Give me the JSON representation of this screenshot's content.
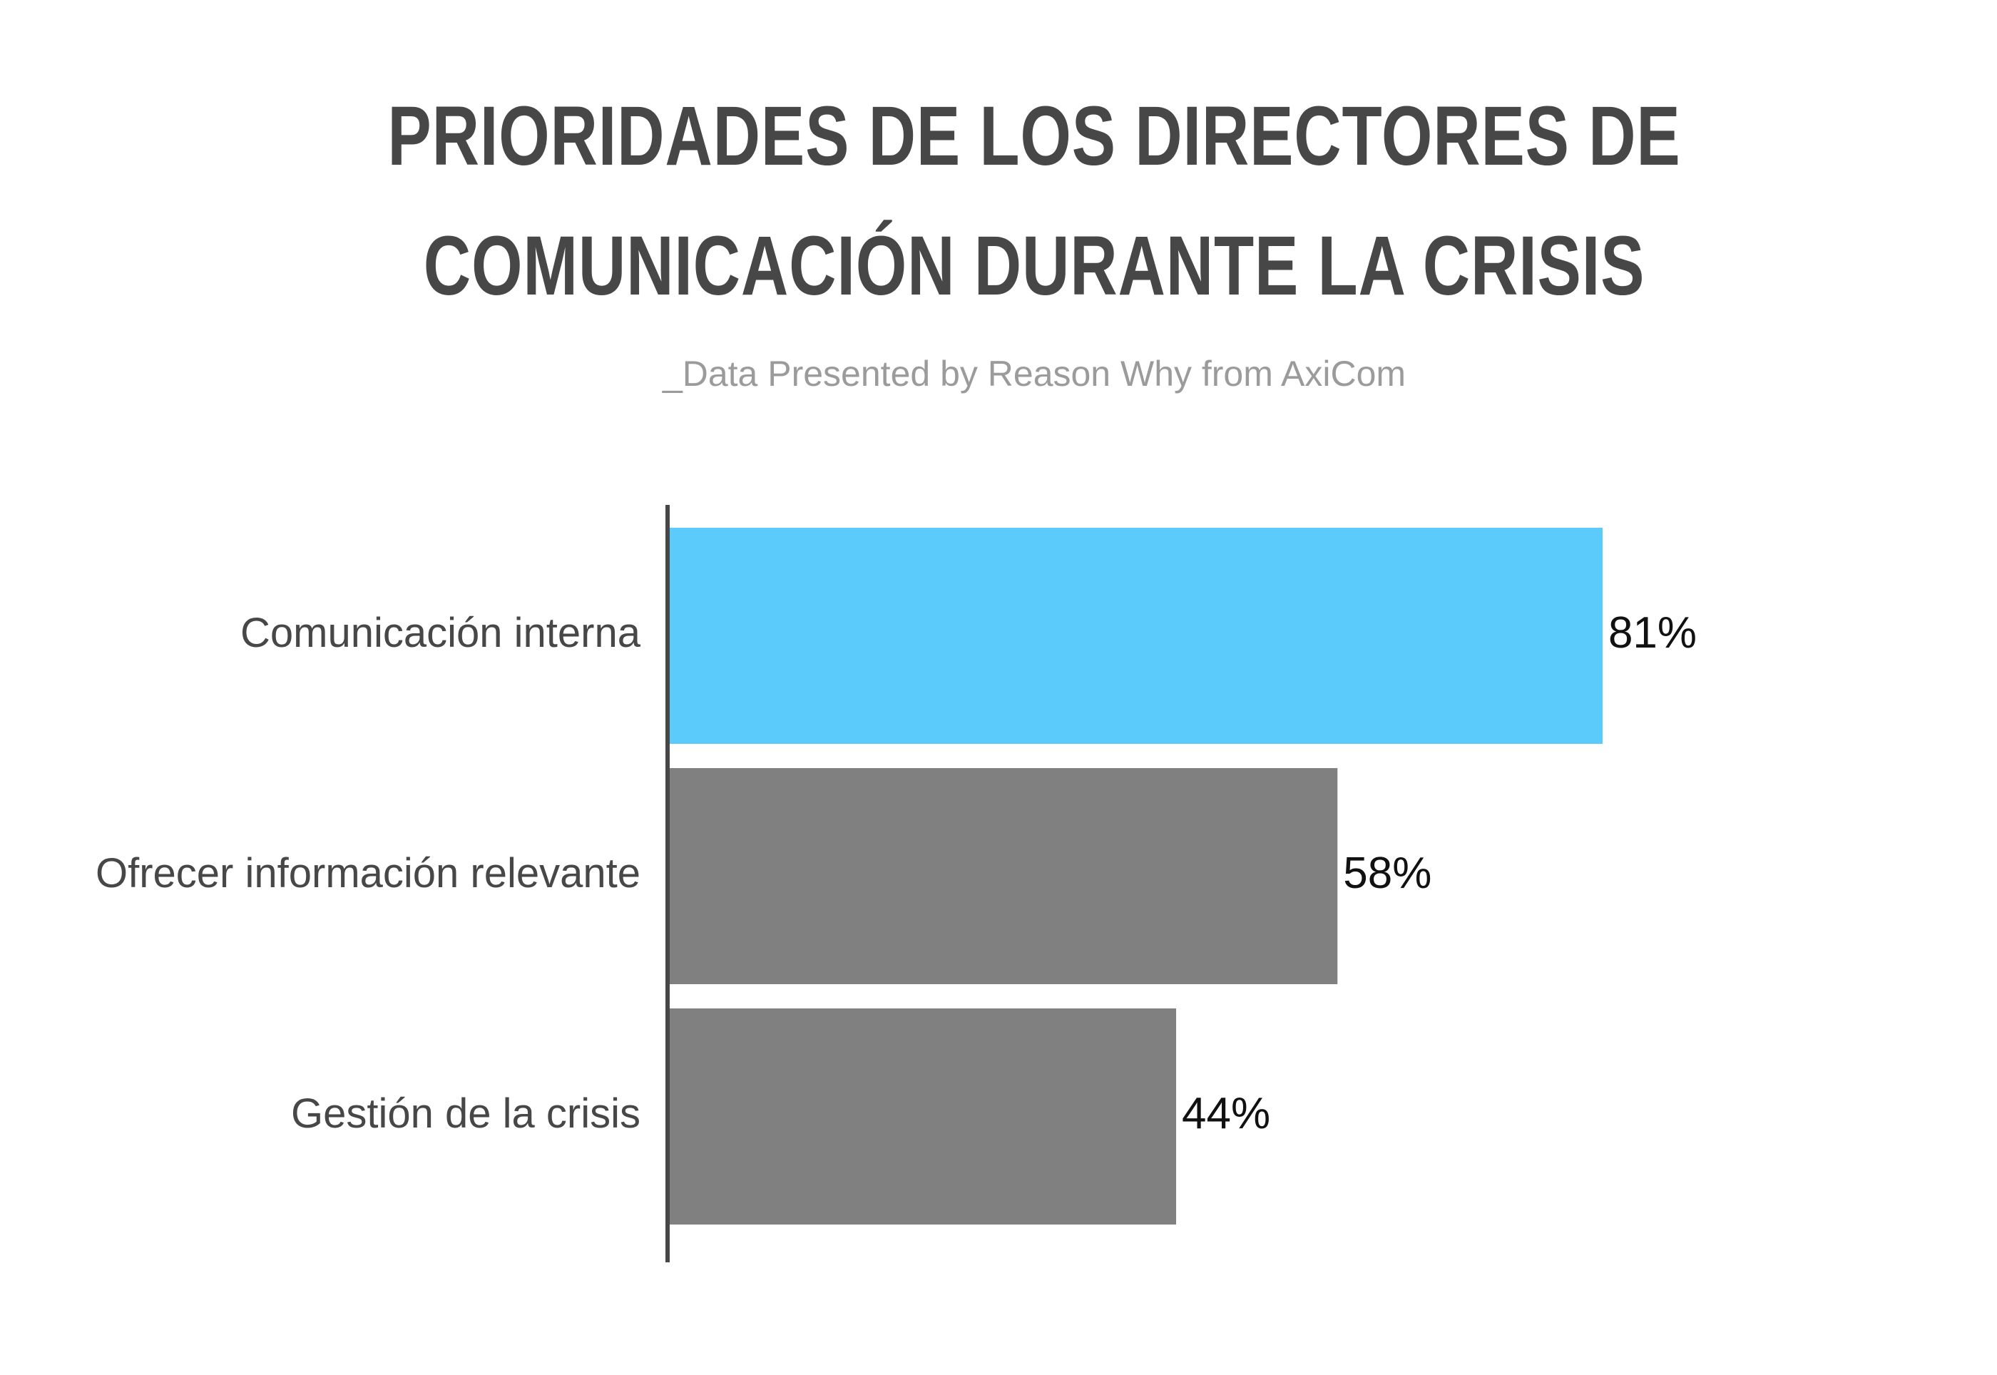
{
  "chart_data": {
    "type": "bar",
    "orientation": "horizontal",
    "title_lines": [
      "PRIORIDADES DE LOS DIRECTORES DE",
      "COMUNICACIÓN DURANTE LA CRISIS"
    ],
    "subtitle": "_Data Presented by Reason Why from AxiCom",
    "categories": [
      "Comunicación interna",
      "Ofrecer información relevante",
      "Gestión de la crisis"
    ],
    "values": [
      81,
      58,
      44
    ],
    "value_labels": [
      "81%",
      "58%",
      "44%"
    ],
    "unit": "%",
    "xlim": [
      0,
      100
    ],
    "grid": false,
    "legend": "none",
    "colors": {
      "highlight": "#5bcbfc",
      "default": "#808080",
      "axis": "#474747"
    },
    "highlight_index": 0
  }
}
